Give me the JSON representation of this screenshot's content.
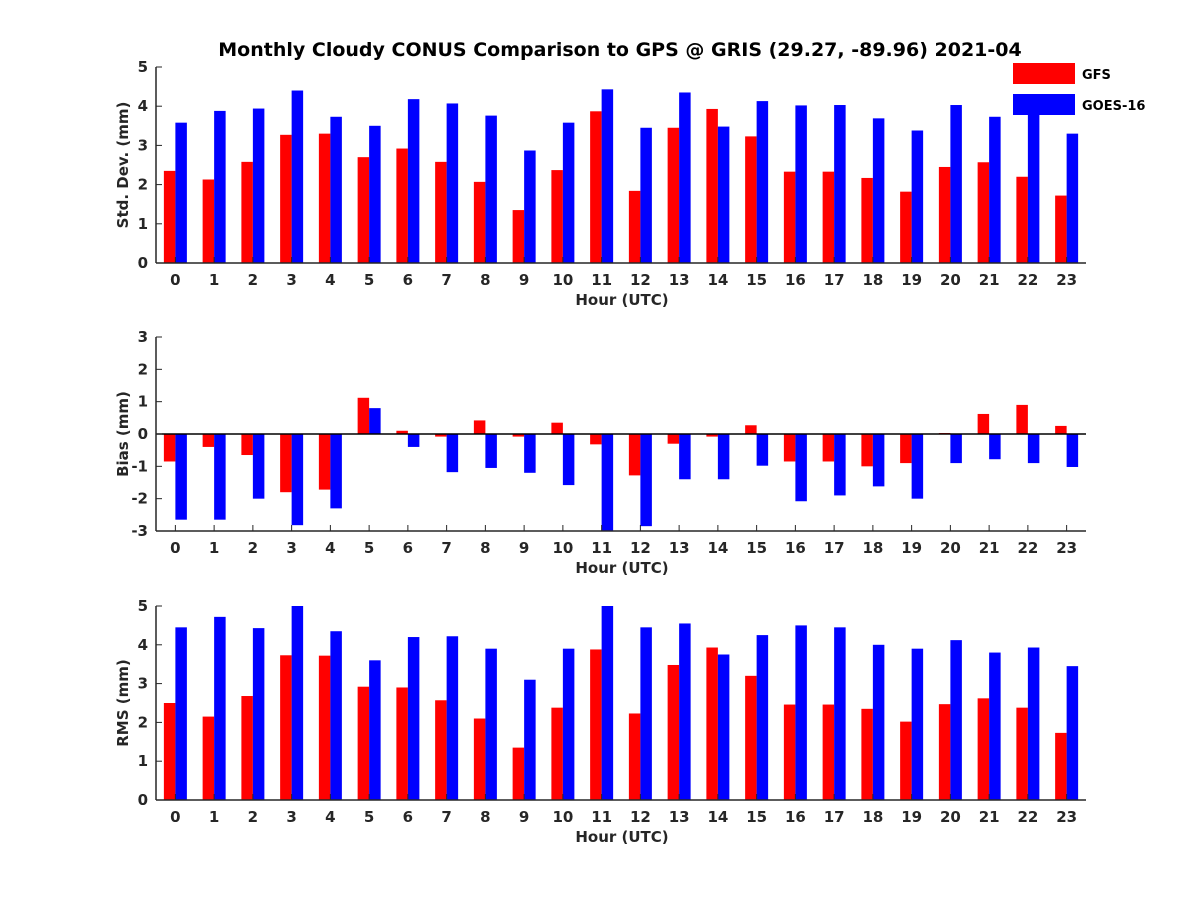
{
  "title": "Monthly Cloudy CONUS Comparison to GPS @ GRIS (29.27, -89.96) 2021-04",
  "legend": [
    {
      "name": "GFS",
      "color": "#ff0000"
    },
    {
      "name": "GOES-16",
      "color": "#0000ff"
    }
  ],
  "chart_data": [
    {
      "type": "bar",
      "xlabel": "Hour (UTC)",
      "ylabel": "Std. Dev. (mm)",
      "ylim": [
        0,
        5
      ],
      "yticks": [
        0,
        1,
        2,
        3,
        4,
        5
      ],
      "categories": [
        "0",
        "1",
        "2",
        "3",
        "4",
        "5",
        "6",
        "7",
        "8",
        "9",
        "10",
        "11",
        "12",
        "13",
        "14",
        "15",
        "16",
        "17",
        "18",
        "19",
        "20",
        "21",
        "22",
        "23"
      ],
      "series": [
        {
          "name": "GFS",
          "color": "#ff0000",
          "values": [
            2.35,
            2.13,
            2.58,
            3.27,
            3.3,
            2.7,
            2.92,
            2.58,
            2.07,
            1.35,
            2.37,
            3.87,
            1.84,
            3.45,
            3.93,
            3.23,
            2.33,
            2.33,
            2.17,
            1.82,
            2.45,
            2.57,
            2.2,
            1.72
          ]
        },
        {
          "name": "GOES-16",
          "color": "#0000ff",
          "values": [
            3.58,
            3.88,
            3.94,
            4.4,
            3.73,
            3.5,
            4.18,
            4.07,
            3.76,
            2.87,
            3.58,
            4.43,
            3.45,
            4.35,
            3.48,
            4.13,
            4.02,
            4.03,
            3.69,
            3.38,
            4.03,
            3.73,
            3.86,
            3.3
          ]
        }
      ]
    },
    {
      "type": "bar",
      "xlabel": "Hour (UTC)",
      "ylabel": "Bias (mm)",
      "ylim": [
        -3,
        3
      ],
      "yticks": [
        -3,
        -2,
        -1,
        0,
        1,
        2,
        3
      ],
      "categories": [
        "0",
        "1",
        "2",
        "3",
        "4",
        "5",
        "6",
        "7",
        "8",
        "9",
        "10",
        "11",
        "12",
        "13",
        "14",
        "15",
        "16",
        "17",
        "18",
        "19",
        "20",
        "21",
        "22",
        "23"
      ],
      "series": [
        {
          "name": "GFS",
          "color": "#ff0000",
          "values": [
            -0.85,
            -0.4,
            -0.65,
            -1.8,
            -1.72,
            1.12,
            0.1,
            -0.08,
            0.42,
            -0.08,
            0.35,
            -0.32,
            -1.28,
            -0.3,
            -0.08,
            0.27,
            -0.85,
            -0.85,
            -1.0,
            -0.9,
            0.03,
            0.62,
            0.9,
            0.25
          ]
        },
        {
          "name": "GOES-16",
          "color": "#0000ff",
          "values": [
            -2.65,
            -2.65,
            -2.0,
            -2.82,
            -2.3,
            0.8,
            -0.4,
            -1.18,
            -1.05,
            -1.2,
            -1.58,
            -3.0,
            -2.85,
            -1.4,
            -1.4,
            -0.98,
            -2.08,
            -1.9,
            -1.62,
            -2.0,
            -0.9,
            -0.78,
            -0.9,
            -1.02
          ]
        }
      ]
    },
    {
      "type": "bar",
      "xlabel": "Hour (UTC)",
      "ylabel": "RMS (mm)",
      "ylim": [
        0,
        5
      ],
      "yticks": [
        0,
        1,
        2,
        3,
        4,
        5
      ],
      "categories": [
        "0",
        "1",
        "2",
        "3",
        "4",
        "5",
        "6",
        "7",
        "8",
        "9",
        "10",
        "11",
        "12",
        "13",
        "14",
        "15",
        "16",
        "17",
        "18",
        "19",
        "20",
        "21",
        "22",
        "23"
      ],
      "series": [
        {
          "name": "GFS",
          "color": "#ff0000",
          "values": [
            2.5,
            2.15,
            2.68,
            3.73,
            3.72,
            2.92,
            2.9,
            2.57,
            2.1,
            1.35,
            2.38,
            3.88,
            2.23,
            3.48,
            3.93,
            3.2,
            2.46,
            2.46,
            2.35,
            2.02,
            2.47,
            2.62,
            2.38,
            1.73
          ]
        },
        {
          "name": "GOES-16",
          "color": "#0000ff",
          "values": [
            4.45,
            4.72,
            4.43,
            5.0,
            4.35,
            3.6,
            4.2,
            4.22,
            3.9,
            3.1,
            3.9,
            5.0,
            4.45,
            4.55,
            3.75,
            4.25,
            4.5,
            4.45,
            4.0,
            3.9,
            4.12,
            3.8,
            3.93,
            3.45
          ]
        }
      ]
    }
  ]
}
